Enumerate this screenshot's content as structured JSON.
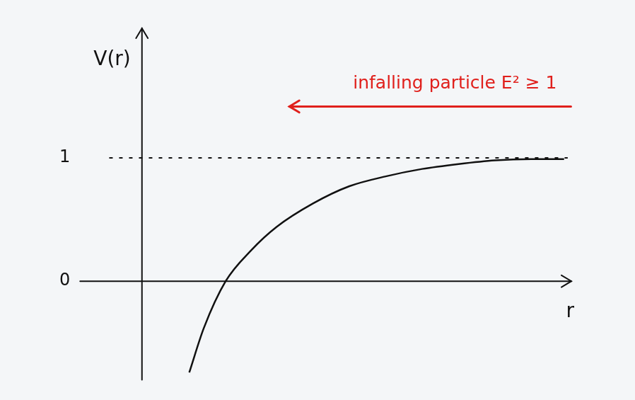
{
  "chart_data": {
    "type": "line",
    "y_label": "V(r)",
    "x_label": "r",
    "xlim": [
      -0.85,
      5.9
    ],
    "ylim": [
      -0.8,
      2.05
    ],
    "yticks": [
      0,
      1
    ],
    "tick_labels": "y",
    "grid": false,
    "series": [
      {
        "color": "#111111",
        "line_style": "solid",
        "marker": "none",
        "x": [
          0.65,
          0.85,
          1.15,
          1.5,
          1.85,
          2.35,
          2.85,
          3.35,
          3.85,
          4.35,
          4.85,
          5.35,
          5.8
        ],
        "values": [
          -0.74,
          -0.38,
          0,
          0.25,
          0.44,
          0.63,
          0.77,
          0.85,
          0.91,
          0.95,
          0.98,
          0.99,
          0.99
        ]
      },
      {
        "color": "#111111",
        "line_style": "dashed",
        "marker": "none",
        "x": [
          -0.45,
          5.85
        ],
        "values": [
          1,
          1
        ]
      }
    ],
    "annotations": [
      {
        "text": "infalling particle E² ≥ 1",
        "color": "#e0201c",
        "x": 4.3,
        "y": 1.6
      }
    ]
  }
}
